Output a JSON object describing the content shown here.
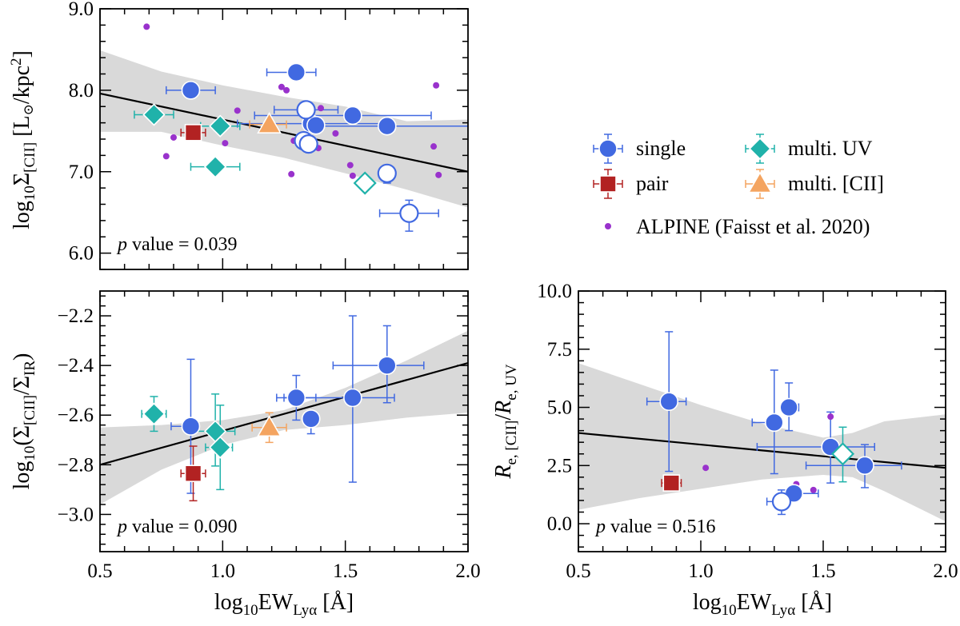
{
  "figure": {
    "legend": {
      "entries": [
        {
          "key": "single",
          "label": "single",
          "marker": "circle",
          "color": "#4169E1"
        },
        {
          "key": "multi_uv",
          "label": "multi. UV",
          "marker": "diamond",
          "color": "#20B2AA"
        },
        {
          "key": "pair",
          "label": "pair",
          "marker": "square",
          "color": "#B22222"
        },
        {
          "key": "multi_cii",
          "label": "multi. [CII]",
          "marker": "triangle",
          "color": "#F4A460"
        },
        {
          "key": "alpine",
          "label": "ALPINE (Faisst et al. 2020)",
          "marker": "dot",
          "color": "#9932CC"
        }
      ],
      "placement": "right of top-left panel"
    },
    "fit_color": "#000000",
    "band_color": "#D9D9D9"
  },
  "chart_data": [
    {
      "type": "scatter",
      "panel": "top-left",
      "xlabel": "",
      "ylabel_parts": {
        "pre": "log",
        "sub1": "10",
        "sym": "Σ",
        "sub2": "[CII]",
        "post": " [L",
        "sun": "⊙",
        "unit": "/kpc",
        "sup": "2",
        "close": "]"
      },
      "xlim": [
        0.5,
        2.0
      ],
      "ylim": [
        5.8,
        9.0
      ],
      "xticks": [
        0.5,
        1.0,
        1.5,
        2.0
      ],
      "yticks": [
        "6.0",
        "7.0",
        "8.0",
        "9.0"
      ],
      "ytick_values": [
        6.0,
        7.0,
        8.0,
        9.0
      ],
      "show_xtick_labels": false,
      "p_value_label": "p",
      "p_value_text": " value = 0.039",
      "fit": {
        "x0": 0.5,
        "y0": 7.96,
        "x1": 2.0,
        "y1": 7.0
      },
      "band": {
        "x": [
          0.5,
          0.75,
          1.0,
          1.25,
          1.5,
          1.75,
          2.0
        ],
        "upper": [
          8.49,
          8.23,
          8.06,
          7.92,
          7.8,
          7.62,
          7.64
        ],
        "lower": [
          7.49,
          7.49,
          7.32,
          7.17,
          6.98,
          6.78,
          6.56
        ]
      },
      "series": [
        {
          "key": "single",
          "filled": true,
          "points": [
            {
              "x": 0.87,
              "y": 8.0,
              "xerr": [
                0.1,
                0.1
              ]
            },
            {
              "x": 1.3,
              "y": 8.22,
              "xerr": [
                0.12,
                0.08
              ]
            },
            {
              "x": 1.53,
              "y": 7.69,
              "xerr": [
                0.4,
                0.32
              ]
            },
            {
              "x": 1.36,
              "y": 7.59,
              "xerr": [
                0.3,
                0.3
              ]
            },
            {
              "x": 1.67,
              "y": 7.56,
              "xerr": [
                0.3,
                0.38
              ]
            },
            {
              "x": 1.38,
              "y": 7.57
            }
          ]
        },
        {
          "key": "single",
          "filled": false,
          "points": [
            {
              "x": 1.34,
              "y": 7.76,
              "xerr": [
                0.13,
                0.13
              ]
            },
            {
              "x": 1.33,
              "y": 7.38
            },
            {
              "x": 1.35,
              "y": 7.34
            },
            {
              "x": 1.67,
              "y": 6.98,
              "yerr": [
                0.12,
                0.0
              ]
            },
            {
              "x": 1.76,
              "y": 6.49,
              "xerr": [
                0.12,
                0.12
              ],
              "yerr": [
                0.22,
                0.16
              ]
            }
          ]
        },
        {
          "key": "multi_uv",
          "filled": true,
          "points": [
            {
              "x": 0.72,
              "y": 7.7,
              "xerr": [
                0.08,
                0.08
              ]
            },
            {
              "x": 0.99,
              "y": 7.56,
              "xerr": [
                0.08,
                0.08
              ]
            },
            {
              "x": 0.97,
              "y": 7.06,
              "xerr": [
                0.1,
                0.1
              ]
            }
          ]
        },
        {
          "key": "multi_uv",
          "filled": false,
          "points": [
            {
              "x": 1.58,
              "y": 6.86
            }
          ]
        },
        {
          "key": "pair",
          "filled": true,
          "points": [
            {
              "x": 0.88,
              "y": 7.48,
              "xerr": [
                0.05,
                0.05
              ]
            }
          ]
        },
        {
          "key": "multi_cii",
          "filled": true,
          "points": [
            {
              "x": 1.19,
              "y": 7.58,
              "xerr": [
                0.08,
                0.07
              ]
            }
          ]
        },
        {
          "key": "alpine",
          "filled": true,
          "points": [
            {
              "x": 0.69,
              "y": 8.78
            },
            {
              "x": 0.8,
              "y": 7.42
            },
            {
              "x": 0.77,
              "y": 7.19
            },
            {
              "x": 1.01,
              "y": 7.35
            },
            {
              "x": 1.06,
              "y": 7.75
            },
            {
              "x": 1.24,
              "y": 8.04
            },
            {
              "x": 1.26,
              "y": 8.0
            },
            {
              "x": 1.28,
              "y": 6.97
            },
            {
              "x": 1.29,
              "y": 7.38
            },
            {
              "x": 1.31,
              "y": 7.38
            },
            {
              "x": 1.39,
              "y": 7.52
            },
            {
              "x": 1.4,
              "y": 7.78
            },
            {
              "x": 1.39,
              "y": 7.29
            },
            {
              "x": 1.46,
              "y": 7.47
            },
            {
              "x": 1.52,
              "y": 7.08
            },
            {
              "x": 1.53,
              "y": 6.95
            },
            {
              "x": 1.87,
              "y": 8.06
            },
            {
              "x": 1.86,
              "y": 7.31
            },
            {
              "x": 1.88,
              "y": 6.96
            }
          ]
        }
      ]
    },
    {
      "type": "scatter",
      "panel": "bottom-left",
      "xlabel_parts": {
        "pre": "log",
        "sub1": "10",
        "main": "EW",
        "sub2": "Lyα",
        "post": " [Å]"
      },
      "ylabel_parts": {
        "pre": "log",
        "sub1": "10",
        "open": "(Σ",
        "sub2": "[CII]",
        "mid": "/Σ",
        "sub3": "IR",
        "close": ")"
      },
      "xlim": [
        0.5,
        2.0
      ],
      "ylim": [
        -3.15,
        -2.1
      ],
      "xticks": [
        0.5,
        1.0,
        1.5,
        2.0
      ],
      "xtick_labels": [
        "0.5",
        "1.0",
        "1.5",
        "2.0"
      ],
      "yticks": [
        "−2.2",
        "−2.4",
        "−2.6",
        "−2.8",
        "−3.0"
      ],
      "ytick_values": [
        -2.2,
        -2.4,
        -2.6,
        -2.8,
        -3.0
      ],
      "p_value_label": "p",
      "p_value_text": " value = 0.090",
      "fit": {
        "x0": 0.5,
        "y0": -2.8,
        "x1": 2.0,
        "y1": -2.39
      },
      "band": {
        "x": [
          0.5,
          0.75,
          1.0,
          1.25,
          1.5,
          1.75,
          2.0
        ],
        "upper": [
          -2.65,
          -2.64,
          -2.62,
          -2.58,
          -2.49,
          -2.38,
          -2.26
        ],
        "lower": [
          -2.96,
          -2.82,
          -2.72,
          -2.66,
          -2.64,
          -2.61,
          -2.59
        ]
      },
      "series": [
        {
          "key": "single",
          "filled": true,
          "points": [
            {
              "x": 0.87,
              "y": -2.645,
              "xerr": [
                0.08,
                0.0
              ],
              "yerr": [
                0.27,
                0.27
              ]
            },
            {
              "x": 1.3,
              "y": -2.53,
              "xerr": [
                0.08,
                0.08
              ],
              "yerr": [
                0.09,
                0.09
              ]
            },
            {
              "x": 1.36,
              "y": -2.615,
              "yerr": [
                0.06,
                0.0
              ]
            },
            {
              "x": 1.53,
              "y": -2.53,
              "xerr": [
                0.28,
                0.17
              ],
              "yerr": [
                0.34,
                0.33
              ]
            },
            {
              "x": 1.67,
              "y": -2.4,
              "xerr": [
                0.22,
                0.15
              ],
              "yerr": [
                0.15,
                0.16
              ]
            }
          ]
        },
        {
          "key": "multi_uv",
          "filled": true,
          "points": [
            {
              "x": 0.72,
              "y": -2.595,
              "xerr": [
                0.05,
                0.05
              ],
              "yerr": [
                0.07,
                0.07
              ]
            },
            {
              "x": 0.97,
              "y": -2.665,
              "xerr": [
                0.1,
                0.08
              ],
              "yerr": [
                0.14,
                0.15
              ]
            },
            {
              "x": 0.99,
              "y": -2.73,
              "xerr": [
                0.06,
                0.05
              ],
              "yerr": [
                0.17,
                0.17
              ]
            }
          ]
        },
        {
          "key": "pair",
          "filled": true,
          "points": [
            {
              "x": 0.88,
              "y": -2.835,
              "xerr": [
                0.05,
                0.05
              ],
              "yerr": [
                0.11,
                0.11
              ]
            }
          ]
        },
        {
          "key": "multi_cii",
          "filled": true,
          "points": [
            {
              "x": 1.19,
              "y": -2.65,
              "xerr": [
                0.07,
                0.07
              ],
              "yerr": [
                0.06,
                0.06
              ]
            }
          ]
        }
      ]
    },
    {
      "type": "scatter",
      "panel": "bottom-right",
      "xlabel_parts": {
        "pre": "log",
        "sub1": "10",
        "main": "EW",
        "sub2": "Lyα",
        "post": " [Å]"
      },
      "ylabel_parts": {
        "a": "R",
        "asub": "e, [CII]",
        "slash": "/",
        "b": "R",
        "bsub": "e, UV"
      },
      "xlim": [
        0.5,
        2.0
      ],
      "ylim": [
        -1.2,
        10.0
      ],
      "xticks": [
        0.5,
        1.0,
        1.5,
        2.0
      ],
      "xtick_labels": [
        "0.5",
        "1.0",
        "1.5",
        "2.0"
      ],
      "yticks": [
        "0.0",
        "2.5",
        "5.0",
        "7.5",
        "10.0"
      ],
      "ytick_values": [
        0.0,
        2.5,
        5.0,
        7.5,
        10.0
      ],
      "p_value_label": "p",
      "p_value_text": " value = 0.516",
      "fit": {
        "x0": 0.5,
        "y0": 3.9,
        "x1": 2.0,
        "y1": 2.4
      },
      "band": {
        "x": [
          0.5,
          0.75,
          1.0,
          1.25,
          1.5,
          1.62,
          1.75,
          2.0
        ],
        "upper": [
          6.9,
          6.0,
          5.1,
          4.3,
          3.7,
          3.9,
          4.4,
          4.7
        ],
        "lower": [
          0.6,
          1.1,
          1.5,
          1.9,
          2.1,
          2.0,
          1.4,
          0.1
        ]
      },
      "series": [
        {
          "key": "single",
          "filled": true,
          "points": [
            {
              "x": 0.87,
              "y": 5.25,
              "xerr": [
                0.09,
                0.07
              ],
              "yerr": [
                3.0,
                3.0
              ]
            },
            {
              "x": 1.3,
              "y": 4.35,
              "xerr": [
                0.09,
                0.0
              ],
              "yerr": [
                2.2,
                2.25
              ]
            },
            {
              "x": 1.36,
              "y": 5.0,
              "xerr": [
                0.0,
                0.04
              ],
              "yerr": [
                1.0,
                1.05
              ]
            },
            {
              "x": 1.53,
              "y": 3.3,
              "xerr": [
                0.3,
                0.18
              ],
              "yerr": [
                1.55,
                1.5
              ]
            },
            {
              "x": 1.67,
              "y": 2.5,
              "xerr": [
                0.24,
                0.15
              ],
              "yerr": [
                0.95,
                0.9
              ]
            },
            {
              "x": 1.38,
              "y": 1.3,
              "xerr": [
                0.0,
                0.1
              ]
            }
          ]
        },
        {
          "key": "single",
          "filled": false,
          "points": [
            {
              "x": 1.33,
              "y": 0.95,
              "xerr": [
                0.06,
                0.0
              ],
              "yerr": [
                0.55,
                0.5
              ]
            }
          ]
        },
        {
          "key": "multi_uv",
          "filled": false,
          "points": [
            {
              "x": 1.58,
              "y": 3.0,
              "yerr": [
                1.2,
                1.15
              ]
            }
          ]
        },
        {
          "key": "pair",
          "filled": true,
          "points": [
            {
              "x": 0.88,
              "y": 1.75,
              "xerr": [
                0.04,
                0.04
              ]
            }
          ]
        },
        {
          "key": "alpine",
          "filled": true,
          "points": [
            {
              "x": 1.02,
              "y": 2.4
            },
            {
              "x": 1.39,
              "y": 1.7
            },
            {
              "x": 1.46,
              "y": 1.45
            },
            {
              "x": 1.52,
              "y": 3.2
            },
            {
              "x": 1.53,
              "y": 4.6
            }
          ]
        }
      ]
    }
  ]
}
